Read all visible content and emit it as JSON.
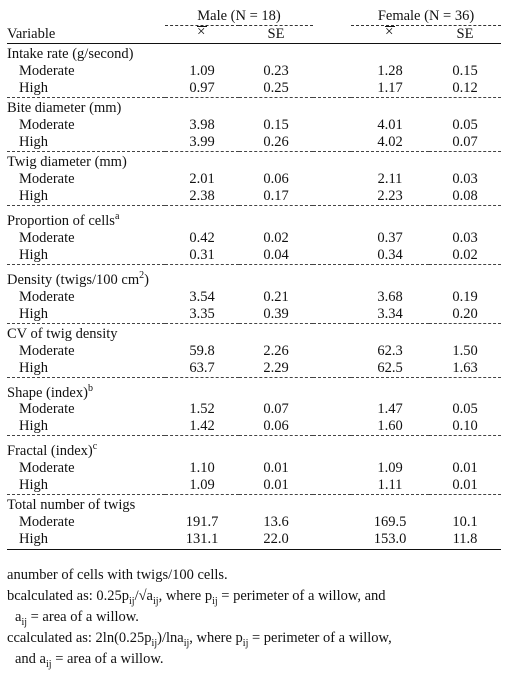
{
  "header": {
    "male_group": "Male (N = 18)",
    "female_group": "Female (N = 36)",
    "variable_col": "Variable",
    "mean_col": "x̄",
    "se_col": "SE"
  },
  "sections": [
    {
      "title": "Intake rate (g/second)",
      "sup": "",
      "rows": [
        {
          "label": "Moderate",
          "m_mean": "1.09",
          "m_se": "0.23",
          "f_mean": "1.28",
          "f_se": "0.15"
        },
        {
          "label": "High",
          "m_mean": "0.97",
          "m_se": "0.25",
          "f_mean": "1.17",
          "f_se": "0.12"
        }
      ]
    },
    {
      "title": "Bite diameter (mm)",
      "sup": "",
      "rows": [
        {
          "label": "Moderate",
          "m_mean": "3.98",
          "m_se": "0.15",
          "f_mean": "4.01",
          "f_se": "0.05"
        },
        {
          "label": "High",
          "m_mean": "3.99",
          "m_se": "0.26",
          "f_mean": "4.02",
          "f_se": "0.07"
        }
      ]
    },
    {
      "title": "Twig diameter (mm)",
      "sup": "",
      "rows": [
        {
          "label": "Moderate",
          "m_mean": "2.01",
          "m_se": "0.06",
          "f_mean": "2.11",
          "f_se": "0.03"
        },
        {
          "label": "High",
          "m_mean": "2.38",
          "m_se": "0.17",
          "f_mean": "2.23",
          "f_se": "0.08"
        }
      ]
    },
    {
      "title": "Proportion of cells",
      "sup": "a",
      "rows": [
        {
          "label": "Moderate",
          "m_mean": "0.42",
          "m_se": "0.02",
          "f_mean": "0.37",
          "f_se": "0.03"
        },
        {
          "label": "High",
          "m_mean": "0.31",
          "m_se": "0.04",
          "f_mean": "0.34",
          "f_se": "0.02"
        }
      ]
    },
    {
      "title": "Density (twigs/100 cm",
      "sup": "2",
      "title_tail": ")",
      "rows": [
        {
          "label": "Moderate",
          "m_mean": "3.54",
          "m_se": "0.21",
          "f_mean": "3.68",
          "f_se": "0.19"
        },
        {
          "label": "High",
          "m_mean": "3.35",
          "m_se": "0.39",
          "f_mean": "3.34",
          "f_se": "0.20"
        }
      ]
    },
    {
      "title": "CV of twig density",
      "sup": "",
      "rows": [
        {
          "label": "Moderate",
          "m_mean": "59.8",
          "m_se": "2.26",
          "f_mean": "62.3",
          "f_se": "1.50"
        },
        {
          "label": "High",
          "m_mean": "63.7",
          "m_se": "2.29",
          "f_mean": "62.5",
          "f_se": "1.63"
        }
      ]
    },
    {
      "title": "Shape (index)",
      "sup": "b",
      "rows": [
        {
          "label": "Moderate",
          "m_mean": "1.52",
          "m_se": "0.07",
          "f_mean": "1.47",
          "f_se": "0.05"
        },
        {
          "label": "High",
          "m_mean": "1.42",
          "m_se": "0.06",
          "f_mean": "1.60",
          "f_se": "0.10"
        }
      ]
    },
    {
      "title": "Fractal (index)",
      "sup": "c",
      "rows": [
        {
          "label": "Moderate",
          "m_mean": "1.10",
          "m_se": "0.01",
          "f_mean": "1.09",
          "f_se": "0.01"
        },
        {
          "label": "High",
          "m_mean": "1.09",
          "m_se": "0.01",
          "f_mean": "1.11",
          "f_se": "0.01"
        }
      ]
    },
    {
      "title": "Total number of twigs",
      "sup": "",
      "rows": [
        {
          "label": "Moderate",
          "m_mean": "191.7",
          "m_se": "13.6",
          "f_mean": "169.5",
          "f_se": "10.1"
        },
        {
          "label": "High",
          "m_mean": "131.1",
          "m_se": "22.0",
          "f_mean": "153.0",
          "f_se": "11.8"
        }
      ]
    }
  ],
  "footnotes": {
    "a": {
      "mark": "a",
      "text": "number of cells with twigs/100 cells."
    },
    "b": {
      "mark": "b",
      "line1_pre": "calculated as: 0.25p",
      "line1_sub1": "ij",
      "line1_mid": "/√a",
      "line1_sub2": "ij",
      "line1_post": ", where p",
      "line1_sub3": "ij",
      "line1_end": " = perimeter of a willow, and",
      "line2_pre": "a",
      "line2_sub": "ij",
      "line2_post": " = area of a willow."
    },
    "c": {
      "mark": "c",
      "line1_pre": "calculated as: 2ln(0.25p",
      "line1_sub1": "ij",
      "line1_mid": ")/lna",
      "line1_sub2": "ij",
      "line1_post": ", where p",
      "line1_sub3": "ij",
      "line1_end": " = perimeter of a willow,",
      "line2_pre": "and a",
      "line2_sub": "ij",
      "line2_post": " = area of a willow."
    }
  }
}
